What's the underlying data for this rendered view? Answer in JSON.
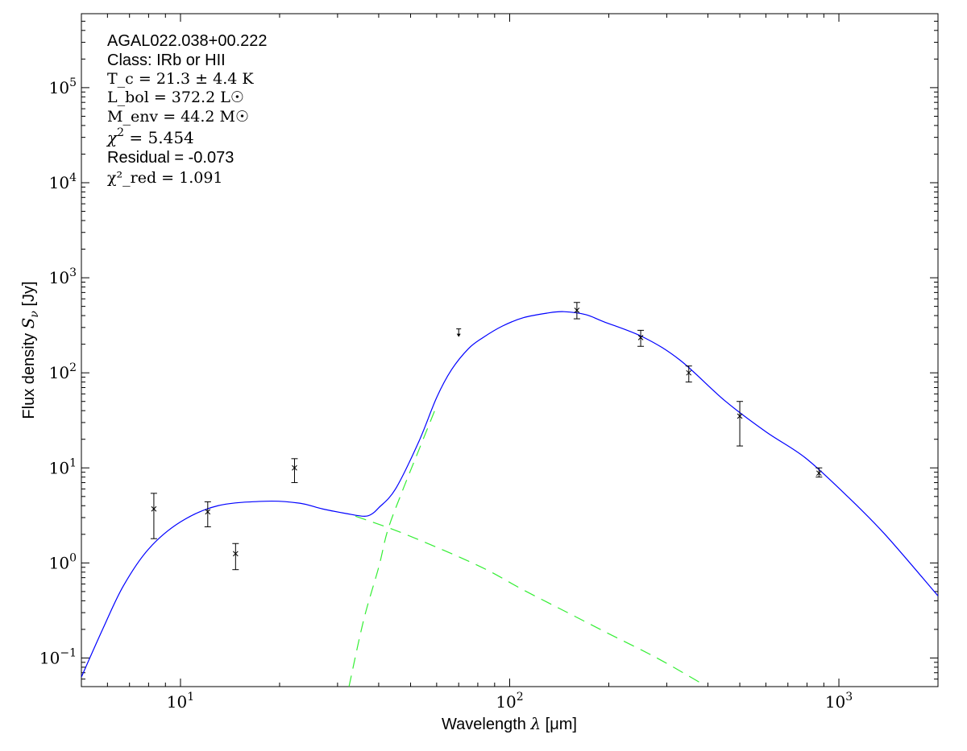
{
  "chart_data": {
    "type": "scatter",
    "title": "",
    "xlabel": "Wavelength λ [μm]",
    "ylabel": "Flux density Sν [Jy]",
    "xlabel_parts": {
      "pre": "Wavelength ",
      "sym": "λ",
      "post": " [μm]"
    },
    "ylabel_parts": {
      "pre": "Flux density ",
      "sym": "S",
      "sub": "ν",
      "post": " [Jy]"
    },
    "xscale": "log",
    "yscale": "log",
    "xlim": [
      5,
      2000
    ],
    "ylim": [
      0.05,
      600000
    ],
    "grid": false,
    "x_ticks": [
      {
        "value": 10,
        "base": "10",
        "exp": "1"
      },
      {
        "value": 100,
        "base": "10",
        "exp": "2"
      },
      {
        "value": 1000,
        "base": "10",
        "exp": "3"
      }
    ],
    "y_ticks": [
      {
        "value": 0.1,
        "base": "10",
        "exp": "−1"
      },
      {
        "value": 1,
        "base": "10",
        "exp": "0"
      },
      {
        "value": 10,
        "base": "10",
        "exp": "1"
      },
      {
        "value": 100,
        "base": "10",
        "exp": "2"
      },
      {
        "value": 1000,
        "base": "10",
        "exp": "3"
      },
      {
        "value": 10000,
        "base": "10",
        "exp": "4"
      },
      {
        "value": 100000,
        "base": "10",
        "exp": "5"
      }
    ],
    "annotations": [
      {
        "text": "AGAL022.038+00.222",
        "style": "sans"
      },
      {
        "text": "Class: IRb or HII",
        "style": "sans"
      },
      {
        "text": "T_c = 21.3 ± 4.4 K",
        "sym": "T",
        "sub": "c",
        "rest": " = 21.3 ± 4.4 K",
        "style": "math"
      },
      {
        "text": "L_bol = 372.2 L☉",
        "sym": "L",
        "sub": "bol",
        "rest": " = 372.2 L",
        "unit_sub": "⊙",
        "style": "math"
      },
      {
        "text": "M_env = 44.2 M☉",
        "sym": "M",
        "sub": "env",
        "rest": " = 44.2 M",
        "unit_sub": "⊙",
        "style": "math"
      },
      {
        "text": "χ² = 5.454",
        "sym": "χ",
        "sup": "2",
        "rest": " = 5.454",
        "style": "math"
      },
      {
        "text": "Residual = -0.073",
        "style": "sans"
      },
      {
        "text": "χ²_red = 1.091",
        "sym": "χ",
        "sup": "2",
        "sub": "red",
        "rest": " = 1.091",
        "style": "math"
      }
    ],
    "colors": {
      "total": "#0000ff",
      "components": "#33ee33",
      "data": "#000000"
    },
    "detections": [
      {
        "x": 8.3,
        "y": 3.7,
        "ylo": 1.8,
        "yhi": 5.4
      },
      {
        "x": 12.1,
        "y": 3.45,
        "ylo": 2.4,
        "yhi": 4.4
      },
      {
        "x": 14.7,
        "y": 1.25,
        "ylo": 0.85,
        "yhi": 1.6
      },
      {
        "x": 22.2,
        "y": 10,
        "ylo": 7,
        "yhi": 12.5
      },
      {
        "x": 160,
        "y": 455,
        "ylo": 370,
        "yhi": 550
      },
      {
        "x": 250,
        "y": 235,
        "ylo": 190,
        "yhi": 280
      },
      {
        "x": 350,
        "y": 100,
        "ylo": 80,
        "yhi": 118
      },
      {
        "x": 500,
        "y": 35,
        "ylo": 17,
        "yhi": 50
      },
      {
        "x": 870,
        "y": 8.8,
        "ylo": 8,
        "yhi": 10
      }
    ],
    "upper_limits": [
      {
        "x": 70,
        "y": 290
      }
    ],
    "series": [
      {
        "style": "solid",
        "color": "total",
        "x": [
          5,
          5.8,
          6.7,
          8,
          10,
          13,
          18.3,
          23,
          27,
          32,
          36,
          38,
          40,
          45,
          53,
          60,
          66.6,
          75,
          83,
          95,
          110,
          130,
          146,
          170,
          193,
          256,
          330,
          450,
          600,
          790,
          1050,
          1380,
          2000
        ],
        "y": [
          0.063,
          0.2,
          0.57,
          1.4,
          2.7,
          4.0,
          4.46,
          4.25,
          3.7,
          3.3,
          3.1,
          3.25,
          3.8,
          6,
          19,
          55,
          108,
          180,
          235,
          310,
          380,
          425,
          440,
          410,
          345,
          235,
          135,
          51,
          24,
          12.8,
          5.2,
          2.0,
          0.45
        ]
      },
      {
        "style": "dashed",
        "color": "components",
        "x": [
          34,
          45,
          63,
          85,
          110,
          150,
          200,
          280,
          390
        ],
        "y": [
          3.1,
          2.2,
          1.36,
          0.85,
          0.52,
          0.3,
          0.18,
          0.1,
          0.052
        ]
      },
      {
        "style": "dashed",
        "color": "components",
        "x": [
          32.5,
          36,
          40,
          42.6,
          47,
          53,
          60
        ],
        "y": [
          0.05,
          0.25,
          0.9,
          2.2,
          5.5,
          15.5,
          45
        ]
      }
    ]
  }
}
